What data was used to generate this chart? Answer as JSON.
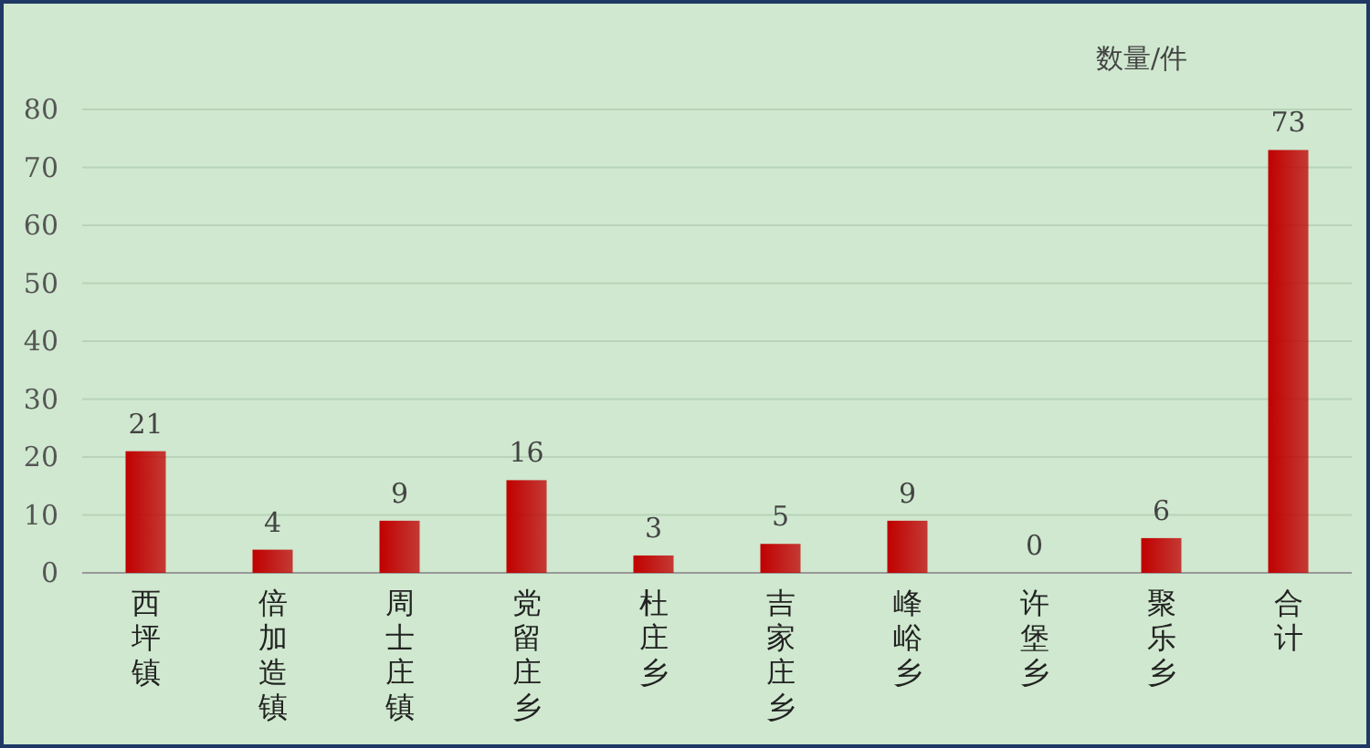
{
  "chart_data": {
    "type": "bar",
    "ylabel": "数量/件",
    "categories": [
      "西坪镇",
      "倍加造镇",
      "周士庄镇",
      "党留庄乡",
      "杜庄乡",
      "吉家庄乡",
      "峰峪乡",
      "许堡乡",
      "聚乐乡",
      "合计"
    ],
    "values": [
      21,
      4,
      9,
      16,
      3,
      5,
      9,
      0,
      6,
      73
    ],
    "color": "#c00000",
    "ylim": [
      0,
      80
    ],
    "yticks": [
      0,
      10,
      20,
      30,
      40,
      50,
      60,
      70,
      80
    ],
    "grid": "y",
    "data_labels": true
  }
}
